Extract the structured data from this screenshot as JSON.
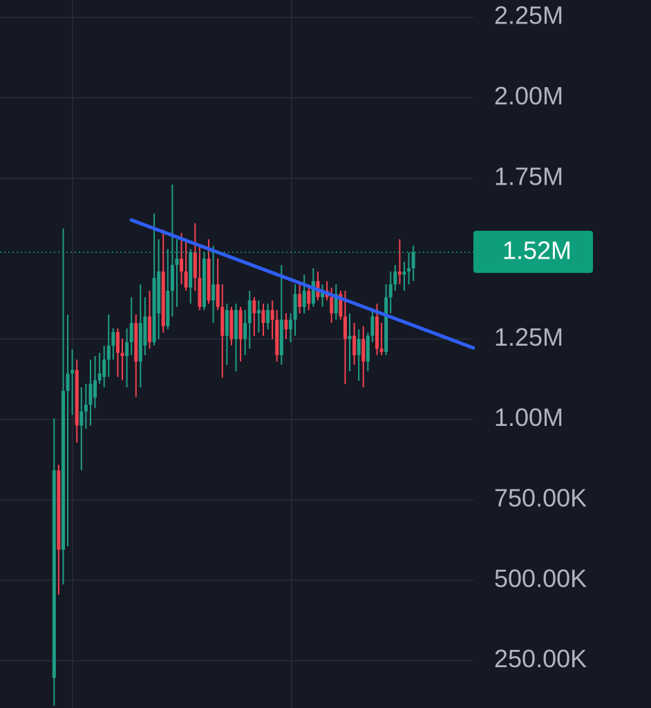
{
  "chart_data": {
    "type": "candlestick",
    "ylim": [
      103000,
      2304000
    ],
    "xlim": [
      -11.9,
      92.2
    ],
    "yticks": [
      {
        "value": 250000,
        "label": "250.00K"
      },
      {
        "value": 500000,
        "label": "500.00K"
      },
      {
        "value": 750000,
        "label": "750.00K"
      },
      {
        "value": 1000000,
        "label": "1.00M"
      },
      {
        "value": 1250000,
        "label": "1.25M"
      },
      {
        "value": 1750000,
        "label": "1.75M"
      },
      {
        "value": 2000000,
        "label": "2.00M"
      },
      {
        "value": 2250000,
        "label": "2.25M"
      }
    ],
    "grid": true,
    "up_color": "#1f9e85",
    "down_color": "#f0424f",
    "last_price": {
      "value": 1520000,
      "label": "1.52M",
      "color": "#0f9e7b"
    },
    "trendline": {
      "x": [
        17,
        92.2
      ],
      "values": [
        1620000,
        1222500
      ],
      "color": "#2f5ff5"
    },
    "open": [
      197000,
      842000,
      595000,
      1089000,
      1143000,
      1154000,
      981000,
      1025000,
      1046000,
      1068000,
      1122000,
      1132000,
      1186000,
      1229000,
      1272000,
      1207000,
      1197000,
      1240000,
      1300000,
      1180000,
      1230000,
      1320000,
      1240000,
      1330000,
      1460000,
      1290000,
      1400000,
      1480000,
      1500000,
      1460000,
      1410000,
      1520000,
      1440000,
      1350000,
      1500000,
      1370000,
      1420000,
      1350000,
      1260000,
      1340000,
      1250000,
      1340000,
      1250000,
      1300000,
      1370000,
      1330000,
      1340000,
      1300000,
      1340000,
      1310000,
      1200000,
      1310000,
      1280000,
      1310000,
      1390000,
      1350000,
      1400000,
      1360000,
      1430000,
      1380000,
      1400000,
      1380000,
      1330000,
      1390000,
      1320000,
      1250000,
      1260000,
      1200000,
      1250000,
      1180000,
      1260000,
      1320000,
      1220000,
      1210000,
      1380000,
      1420000,
      1460000,
      1450000,
      1460000,
      1470000
    ],
    "high": [
      1003000,
      859000,
      1594000,
      1326000,
      1218000,
      1186000,
      1100000,
      1111000,
      1186000,
      1197000,
      1207000,
      1229000,
      1326000,
      1283000,
      1283000,
      1251000,
      1283000,
      1380000,
      1326000,
      1420000,
      1380000,
      1400000,
      1640000,
      1560000,
      1590000,
      1530000,
      1730000,
      1560000,
      1580000,
      1560000,
      1530000,
      1610000,
      1540000,
      1520000,
      1560000,
      1540000,
      1500000,
      1420000,
      1360000,
      1350000,
      1360000,
      1350000,
      1340000,
      1400000,
      1380000,
      1370000,
      1360000,
      1360000,
      1370000,
      1340000,
      1480000,
      1330000,
      1330000,
      1420000,
      1420000,
      1450000,
      1420000,
      1470000,
      1460000,
      1420000,
      1430000,
      1410000,
      1420000,
      1400000,
      1400000,
      1330000,
      1300000,
      1280000,
      1290000,
      1270000,
      1340000,
      1360000,
      1300000,
      1420000,
      1460000,
      1480000,
      1560000,
      1490000,
      1520000,
      1540000
    ],
    "low": [
      110000,
      455000,
      487000,
      606000,
      1014000,
      928000,
      842000,
      971000,
      981000,
      1035000,
      1111000,
      1100000,
      1132000,
      1186000,
      1132000,
      1122000,
      1100000,
      1200000,
      1070000,
      1100000,
      1200000,
      1220000,
      1230000,
      1250000,
      1270000,
      1280000,
      1320000,
      1350000,
      1420000,
      1400000,
      1360000,
      1400000,
      1340000,
      1340000,
      1360000,
      1300000,
      1340000,
      1130000,
      1170000,
      1230000,
      1150000,
      1180000,
      1200000,
      1220000,
      1260000,
      1270000,
      1260000,
      1280000,
      1250000,
      1180000,
      1170000,
      1250000,
      1240000,
      1260000,
      1330000,
      1330000,
      1340000,
      1350000,
      1370000,
      1350000,
      1370000,
      1300000,
      1310000,
      1310000,
      1110000,
      1150000,
      1170000,
      1120000,
      1100000,
      1150000,
      1240000,
      1200000,
      1200000,
      1200000,
      1330000,
      1400000,
      1420000,
      1400000,
      1420000,
      1430000
    ],
    "close": [
      842000,
      595000,
      1089000,
      1143000,
      1154000,
      981000,
      1025000,
      1046000,
      1111000,
      1122000,
      1143000,
      1186000,
      1229000,
      1272000,
      1207000,
      1197000,
      1240000,
      1300000,
      1180000,
      1300000,
      1320000,
      1240000,
      1440000,
      1460000,
      1290000,
      1400000,
      1480000,
      1500000,
      1460000,
      1410000,
      1520000,
      1440000,
      1350000,
      1500000,
      1370000,
      1420000,
      1350000,
      1260000,
      1340000,
      1250000,
      1340000,
      1250000,
      1300000,
      1370000,
      1330000,
      1340000,
      1300000,
      1340000,
      1310000,
      1200000,
      1310000,
      1280000,
      1310000,
      1390000,
      1350000,
      1400000,
      1360000,
      1430000,
      1380000,
      1400000,
      1380000,
      1330000,
      1390000,
      1320000,
      1250000,
      1260000,
      1200000,
      1250000,
      1180000,
      1260000,
      1320000,
      1220000,
      1210000,
      1380000,
      1420000,
      1460000,
      1450000,
      1460000,
      1470000,
      1520000
    ]
  }
}
